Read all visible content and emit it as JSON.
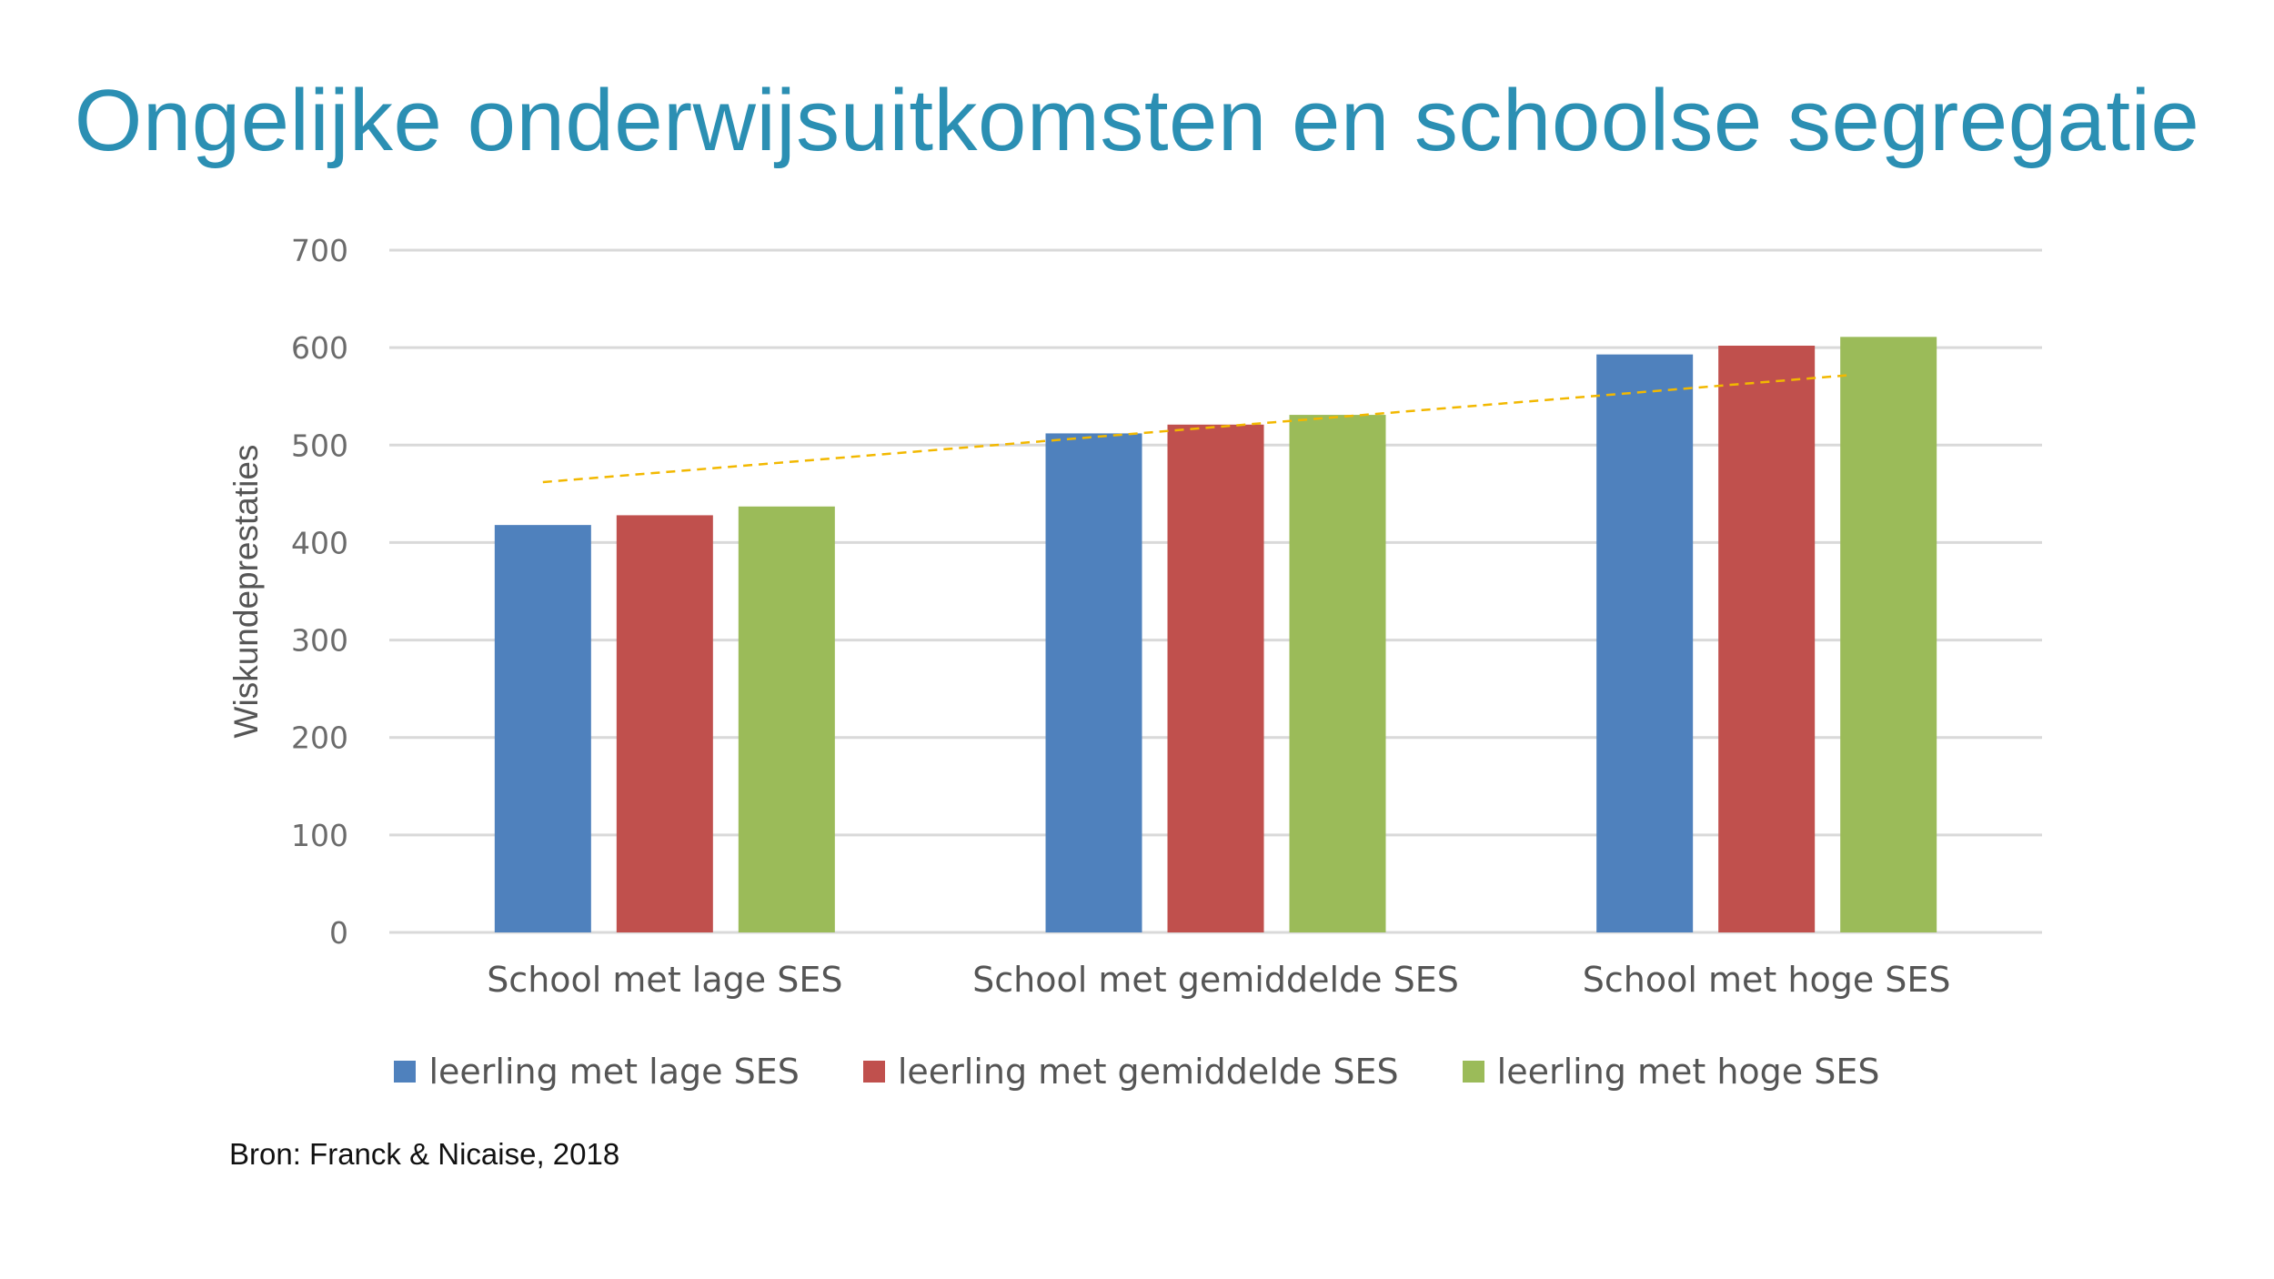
{
  "slide": {
    "title": "Ongelijke onderwijsuitkomsten en schoolse segregatie",
    "source": "Bron: Franck & Nicaise, 2018"
  },
  "chart_data": {
    "type": "bar",
    "title": "",
    "xlabel": "",
    "ylabel": "Wiskundeprestaties",
    "ylim": [
      0,
      700
    ],
    "yticks": [
      0,
      100,
      200,
      300,
      400,
      500,
      600,
      700
    ],
    "grid": true,
    "legend_position": "bottom",
    "categories": [
      "School met lage SES",
      "School met gemiddelde SES",
      "School met hoge SES"
    ],
    "series": [
      {
        "name": "leerling met lage SES",
        "color": "#4f81bd",
        "values": [
          418,
          512,
          593
        ]
      },
      {
        "name": "leerling met gemiddelde SES",
        "color": "#c0504d",
        "values": [
          428,
          521,
          602
        ]
      },
      {
        "name": "leerling met hoge SES",
        "color": "#9bbb59",
        "values": [
          437,
          531,
          611
        ]
      }
    ],
    "trendline": {
      "color": "#f2b800",
      "style": "dashed",
      "start_value": 462,
      "end_value": 572
    }
  }
}
